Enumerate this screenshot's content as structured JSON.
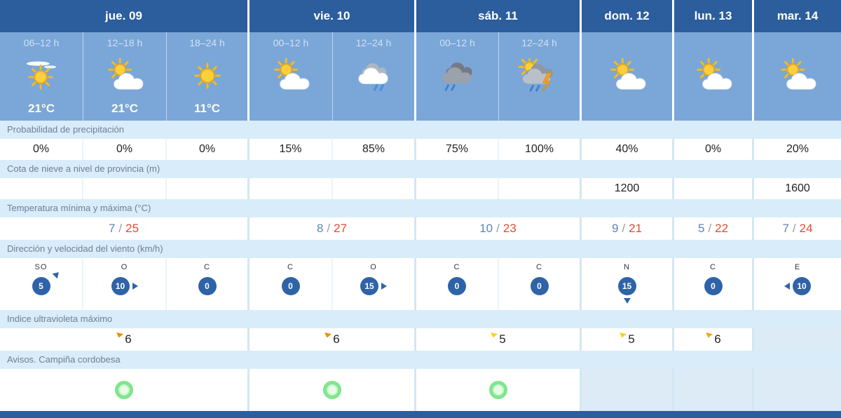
{
  "colors": {
    "header_blue": "#2c5d9d",
    "forecast_blue": "#7ba6d8",
    "label_row_bg": "#d8edf9",
    "min_temp": "#5d87b4",
    "max_temp": "#e14b33",
    "wind_badge_blue": "#2f63a7",
    "warning_green": "#7fe68c",
    "empty_cell_tint": "#dcebf6"
  },
  "header": {
    "days": [
      {
        "label": "jue. 09"
      },
      {
        "label": "vie. 10"
      },
      {
        "label": "sáb. 11"
      },
      {
        "label": "dom. 12"
      },
      {
        "label": "lun. 13"
      },
      {
        "label": "mar. 14"
      }
    ]
  },
  "forecast": {
    "periods": [
      "06–12 h",
      "12–18 h",
      "18–24 h",
      "00–12 h",
      "12–24 h",
      "00–12 h",
      "12–24 h",
      "",
      "",
      ""
    ],
    "icons": [
      "sun-veil",
      "sun-cloud",
      "sun",
      "sun-cloud",
      "clouds-rain",
      "dark-clouds-rain",
      "storm-rain",
      "sun-cloud",
      "sun-cloud",
      "sun-cloud"
    ],
    "temps": [
      "21°C",
      "21°C",
      "11°C",
      "",
      "",
      "",
      "",
      "",
      "",
      ""
    ]
  },
  "precipitation": {
    "label": "Probabilidad de precipitación",
    "values": [
      "0%",
      "0%",
      "0%",
      "15%",
      "85%",
      "75%",
      "100%",
      "40%",
      "0%",
      "20%"
    ]
  },
  "snow_level": {
    "label": "Cota de nieve a nivel de provincia (m)",
    "values": [
      "",
      "",
      "",
      "",
      "",
      "",
      "",
      "1200",
      "",
      "1600"
    ]
  },
  "temperature": {
    "label": "Temperatura mínima y máxima (°C)",
    "separator": "/",
    "values": [
      {
        "min": "7",
        "max": "25"
      },
      {
        "min": "8",
        "max": "27"
      },
      {
        "min": "10",
        "max": "23"
      },
      {
        "min": "9",
        "max": "21"
      },
      {
        "min": "5",
        "max": "22"
      },
      {
        "min": "7",
        "max": "24"
      }
    ]
  },
  "wind": {
    "label": "Dirección y velocidad del viento (km/h)",
    "values": [
      {
        "dir": "SO",
        "speed": "5",
        "arrow": "ne"
      },
      {
        "dir": "O",
        "speed": "10",
        "arrow": "e"
      },
      {
        "dir": "C",
        "speed": "0",
        "arrow": ""
      },
      {
        "dir": "C",
        "speed": "0",
        "arrow": ""
      },
      {
        "dir": "O",
        "speed": "15",
        "arrow": "e"
      },
      {
        "dir": "C",
        "speed": "0",
        "arrow": ""
      },
      {
        "dir": "C",
        "speed": "0",
        "arrow": ""
      },
      {
        "dir": "N",
        "speed": "15",
        "arrow": "s"
      },
      {
        "dir": "C",
        "speed": "0",
        "arrow": ""
      },
      {
        "dir": "E",
        "speed": "10",
        "arrow": "w"
      }
    ]
  },
  "uv_index": {
    "label": "Indice ultravioleta máximo",
    "values": [
      {
        "value": "6",
        "flag": "#ee8d0f"
      },
      {
        "value": "6",
        "flag": "#ee8d0f"
      },
      {
        "value": "5",
        "flag": "#f5d327"
      },
      {
        "value": "5",
        "flag": "#f5d327"
      },
      {
        "value": "6",
        "flag": "#f2a818"
      },
      {
        "value": "",
        "flag": ""
      }
    ]
  },
  "warnings": {
    "label": "Avisos. Campiña cordobesa",
    "values": [
      {
        "status": "green"
      },
      {
        "status": "green"
      },
      {
        "status": "green"
      },
      {
        "status": ""
      },
      {
        "status": ""
      },
      {
        "status": ""
      }
    ]
  }
}
